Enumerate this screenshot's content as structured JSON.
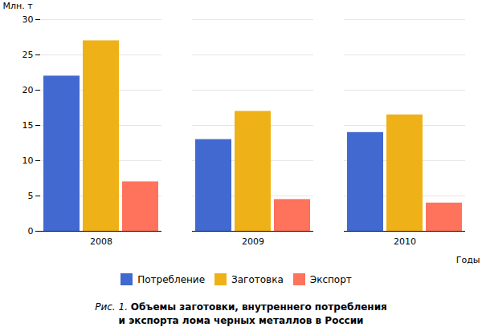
{
  "chart_data": {
    "type": "bar",
    "categories": [
      "2008",
      "2009",
      "2010"
    ],
    "series": [
      {
        "name": "Потребление",
        "values": [
          22,
          13,
          14
        ]
      },
      {
        "name": "Заготовка",
        "values": [
          27,
          17,
          16.5
        ]
      },
      {
        "name": "Экспорт",
        "values": [
          7,
          4.5,
          4
        ]
      }
    ],
    "ylim": [
      0,
      30
    ],
    "yticks": [
      0,
      5,
      10,
      15,
      20,
      25,
      30
    ],
    "ylabel": "Млн. т",
    "xlabel": "Годы",
    "grid": true,
    "legend": "bottom",
    "annotations": [
      "Рис. 1.",
      "Объемы заготовки, внутреннего потребления",
      "и экспорта лома черных металлов в России"
    ]
  }
}
